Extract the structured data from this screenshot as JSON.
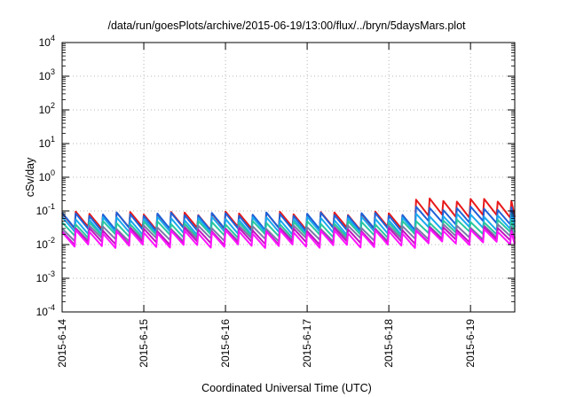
{
  "chart_data": {
    "type": "line",
    "title": "/data/run/goesPlots/archive/2015-06-19/13:00/flux/../bryn/5daysMars.plot",
    "xlabel": "Coordinated Universal Time (UTC)",
    "ylabel": "cSv/day",
    "yscale": "log",
    "ylim": [
      0.0001,
      10000
    ],
    "xlim": [
      "2015-06-14 00:00",
      "2015-06-19 13:00"
    ],
    "grid": true,
    "x_ticks": [
      "2015-6-14",
      "2015-6-15",
      "2015-6-16",
      "2015-6-17",
      "2015-6-18",
      "2015-6-19"
    ],
    "y_ticks": [
      {
        "base": "10",
        "exp": "-4",
        "value": 0.0001
      },
      {
        "base": "10",
        "exp": "-3",
        "value": 0.001
      },
      {
        "base": "10",
        "exp": "-2",
        "value": 0.01
      },
      {
        "base": "10",
        "exp": "-1",
        "value": 0.1
      },
      {
        "base": "10",
        "exp": "0",
        "value": 1
      },
      {
        "base": "10",
        "exp": "1",
        "value": 10
      },
      {
        "base": "10",
        "exp": "2",
        "value": 100
      },
      {
        "base": "10",
        "exp": "3",
        "value": 1000
      },
      {
        "base": "10",
        "exp": "4",
        "value": 10000
      }
    ],
    "series": [
      {
        "color": "#e8191a",
        "peak_early": 0.085,
        "trough_early": 0.03,
        "peak_late": 0.21,
        "trough_late": 0.07
      },
      {
        "color": "#1e60d8",
        "peak_early": 0.08,
        "trough_early": 0.028,
        "peak_late": 0.12,
        "trough_late": 0.045
      },
      {
        "color": "#1aa8f0",
        "peak_early": 0.06,
        "trough_early": 0.022,
        "peak_late": 0.075,
        "trough_late": 0.03
      },
      {
        "color": "#28c8a0",
        "peak_early": 0.045,
        "trough_early": 0.018,
        "peak_late": 0.05,
        "trough_late": 0.022
      },
      {
        "color": "#7a7aa8",
        "peak_early": 0.033,
        "trough_early": 0.014,
        "peak_late": 0.036,
        "trough_late": 0.016
      },
      {
        "color": "#c014c0",
        "peak_early": 0.028,
        "trough_early": 0.011,
        "peak_late": 0.03,
        "trough_late": 0.013
      },
      {
        "color": "#ff14ff",
        "peak_early": 0.024,
        "trough_early": 0.009,
        "peak_late": 0.026,
        "trough_late": 0.011
      }
    ],
    "cycle_hours": 4,
    "late_start": "2015-06-18 08:00"
  }
}
